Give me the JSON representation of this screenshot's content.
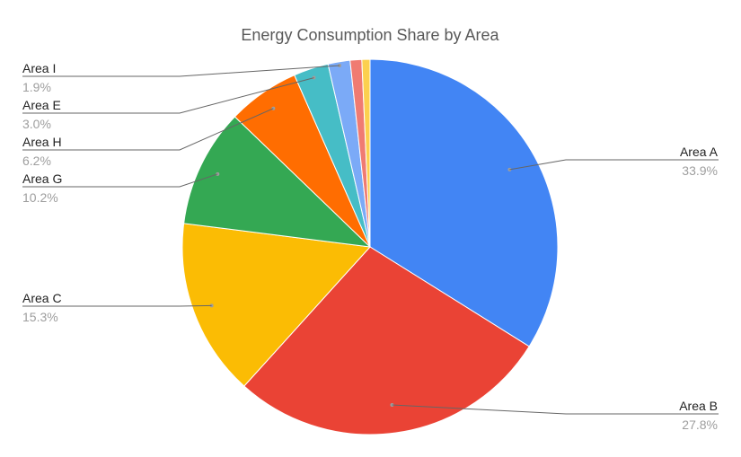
{
  "chart_data": {
    "type": "pie",
    "title": "Energy Consumption Share by Area",
    "slices": [
      {
        "label": "Area A",
        "display": "33.9%",
        "value": 33.9,
        "color": "#4285F4",
        "labeled": true
      },
      {
        "label": "Area B",
        "display": "27.8%",
        "value": 27.8,
        "color": "#EA4335",
        "labeled": true
      },
      {
        "label": "Area C",
        "display": "15.3%",
        "value": 15.3,
        "color": "#FBBC04",
        "labeled": true
      },
      {
        "label": "Area G",
        "display": "10.2%",
        "value": 10.2,
        "color": "#34A853",
        "labeled": true
      },
      {
        "label": "Area H",
        "display": "6.2%",
        "value": 6.2,
        "color": "#FF6D01",
        "labeled": true
      },
      {
        "label": "Area E",
        "display": "3.0%",
        "value": 3.0,
        "color": "#46BDC6",
        "labeled": true
      },
      {
        "label": "Area I",
        "display": "1.9%",
        "value": 1.9,
        "color": "#7BAAF7",
        "labeled": true
      },
      {
        "label": "",
        "display": "",
        "value": 1.0,
        "color": "#F07B72",
        "labeled": false
      },
      {
        "label": "",
        "display": "",
        "value": 0.7,
        "color": "#FCD04F",
        "labeled": false
      }
    ],
    "start_angle": "12 o'clock",
    "direction": "clockwise"
  }
}
